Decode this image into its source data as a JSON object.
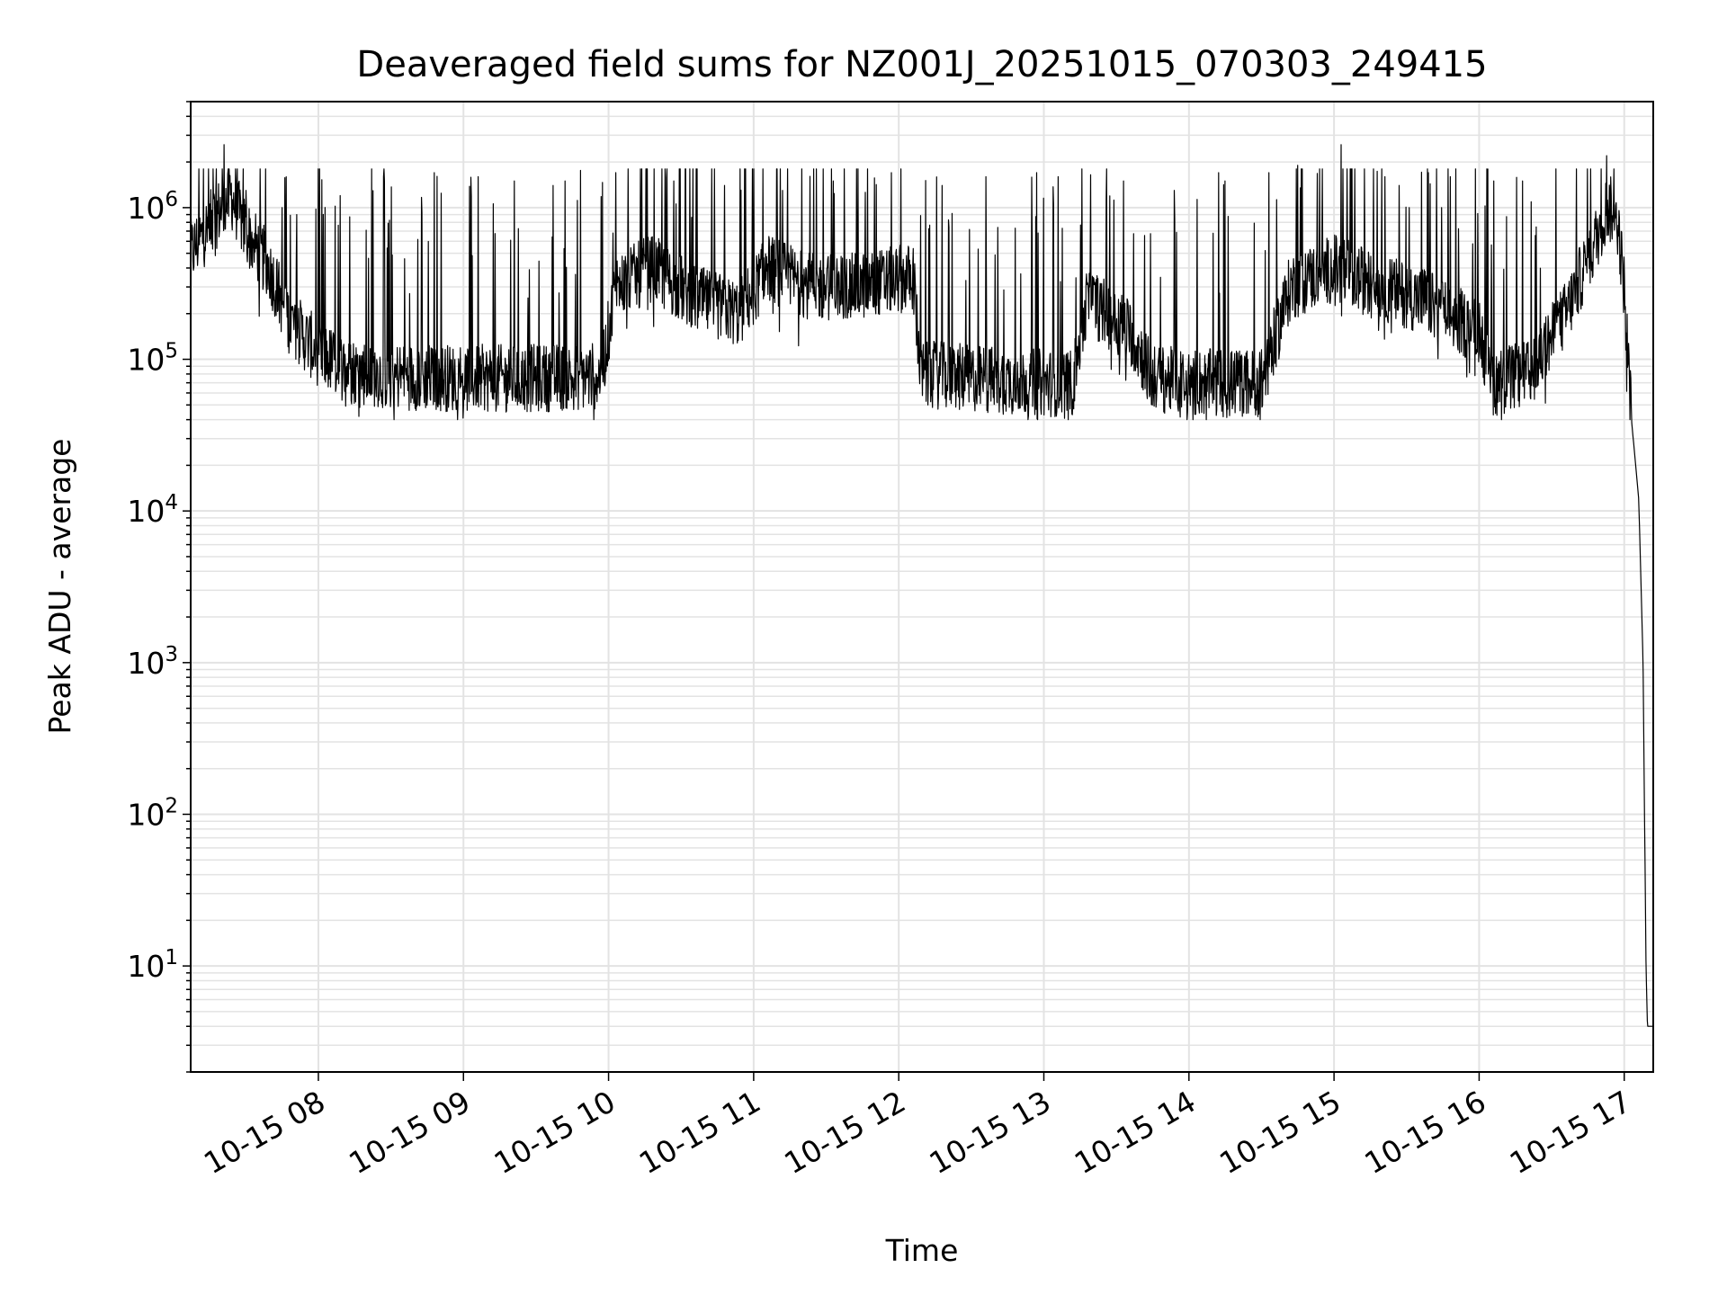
{
  "chart_data": {
    "type": "line",
    "title": "Deaveraged field sums for NZ001J_20251015_070303_249415",
    "xlabel": "Time",
    "ylabel": "Peak ADU - average",
    "yscale": "log",
    "ylim": [
      2,
      5000000
    ],
    "xlim": [
      7.12,
      17.2
    ],
    "grid": true,
    "x_ticks": [
      {
        "value": 8,
        "label": "10-15 08"
      },
      {
        "value": 9,
        "label": "10-15 09"
      },
      {
        "value": 10,
        "label": "10-15 10"
      },
      {
        "value": 11,
        "label": "10-15 11"
      },
      {
        "value": 12,
        "label": "10-15 12"
      },
      {
        "value": 13,
        "label": "10-15 13"
      },
      {
        "value": 14,
        "label": "10-15 14"
      },
      {
        "value": 15,
        "label": "10-15 15"
      },
      {
        "value": 16,
        "label": "10-15 16"
      },
      {
        "value": 17,
        "label": "10-15 17"
      }
    ],
    "y_ticks": [
      {
        "value": 10,
        "base": "10",
        "exp": "1"
      },
      {
        "value": 100,
        "base": "10",
        "exp": "2"
      },
      {
        "value": 1000,
        "base": "10",
        "exp": "3"
      },
      {
        "value": 10000,
        "base": "10",
        "exp": "4"
      },
      {
        "value": 100000,
        "base": "10",
        "exp": "5"
      },
      {
        "value": 1000000,
        "base": "10",
        "exp": "6"
      }
    ],
    "series": [
      {
        "name": "field sums",
        "color": "#000000",
        "envelope": [
          [
            7.12,
            500000
          ],
          [
            7.3,
            900000
          ],
          [
            7.4,
            1200000
          ],
          [
            7.5,
            700000
          ],
          [
            7.65,
            420000
          ],
          [
            7.8,
            180000
          ],
          [
            8.0,
            110000
          ],
          [
            8.2,
            85000
          ],
          [
            8.5,
            78000
          ],
          [
            9.0,
            75000
          ],
          [
            9.5,
            75000
          ],
          [
            9.95,
            78000
          ],
          [
            10.05,
            300000
          ],
          [
            10.3,
            400000
          ],
          [
            10.6,
            250000
          ],
          [
            10.9,
            200000
          ],
          [
            11.1,
            400000
          ],
          [
            11.4,
            300000
          ],
          [
            11.7,
            300000
          ],
          [
            12.1,
            350000
          ],
          [
            12.15,
            80000
          ],
          [
            12.5,
            75000
          ],
          [
            13.0,
            70000
          ],
          [
            13.2,
            70000
          ],
          [
            13.3,
            250000
          ],
          [
            13.6,
            150000
          ],
          [
            13.75,
            75000
          ],
          [
            14.0,
            70000
          ],
          [
            14.5,
            70000
          ],
          [
            14.7,
            300000
          ],
          [
            15.0,
            400000
          ],
          [
            15.3,
            300000
          ],
          [
            15.6,
            250000
          ],
          [
            16.0,
            150000
          ],
          [
            16.1,
            70000
          ],
          [
            16.35,
            80000
          ],
          [
            16.6,
            200000
          ],
          [
            16.8,
            600000
          ],
          [
            16.88,
            1000000
          ],
          [
            16.95,
            900000
          ],
          [
            17.0,
            300000
          ],
          [
            17.05,
            40000
          ],
          [
            17.1,
            12000
          ],
          [
            17.13,
            1000
          ],
          [
            17.15,
            10
          ],
          [
            17.16,
            4
          ],
          [
            17.2,
            4
          ]
        ],
        "spikes": [
          [
            7.35,
            2600000
          ],
          [
            7.5,
            1300000
          ],
          [
            7.75,
            1000000
          ],
          [
            7.85,
            900000
          ],
          [
            8.15,
            1200000
          ],
          [
            8.45,
            1600000
          ],
          [
            8.8,
            1700000
          ],
          [
            9.1,
            1600000
          ],
          [
            9.35,
            1500000
          ],
          [
            9.7,
            1500000
          ],
          [
            10.05,
            1700000
          ],
          [
            10.45,
            1500000
          ],
          [
            10.8,
            1400000
          ],
          [
            11.2,
            1300000
          ],
          [
            11.55,
            1500000
          ],
          [
            11.95,
            1700000
          ],
          [
            12.3,
            1400000
          ],
          [
            12.6,
            1600000
          ],
          [
            12.95,
            1700000
          ],
          [
            13.1,
            1600000
          ],
          [
            13.55,
            1500000
          ],
          [
            13.9,
            1300000
          ],
          [
            14.25,
            1500000
          ],
          [
            14.55,
            1700000
          ],
          [
            14.75,
            1900000
          ],
          [
            15.05,
            2600000
          ],
          [
            15.35,
            1600000
          ],
          [
            15.65,
            1700000
          ],
          [
            15.8,
            1600000
          ],
          [
            16.1,
            1500000
          ],
          [
            16.3,
            1500000
          ],
          [
            16.88,
            2200000
          ]
        ]
      }
    ]
  }
}
